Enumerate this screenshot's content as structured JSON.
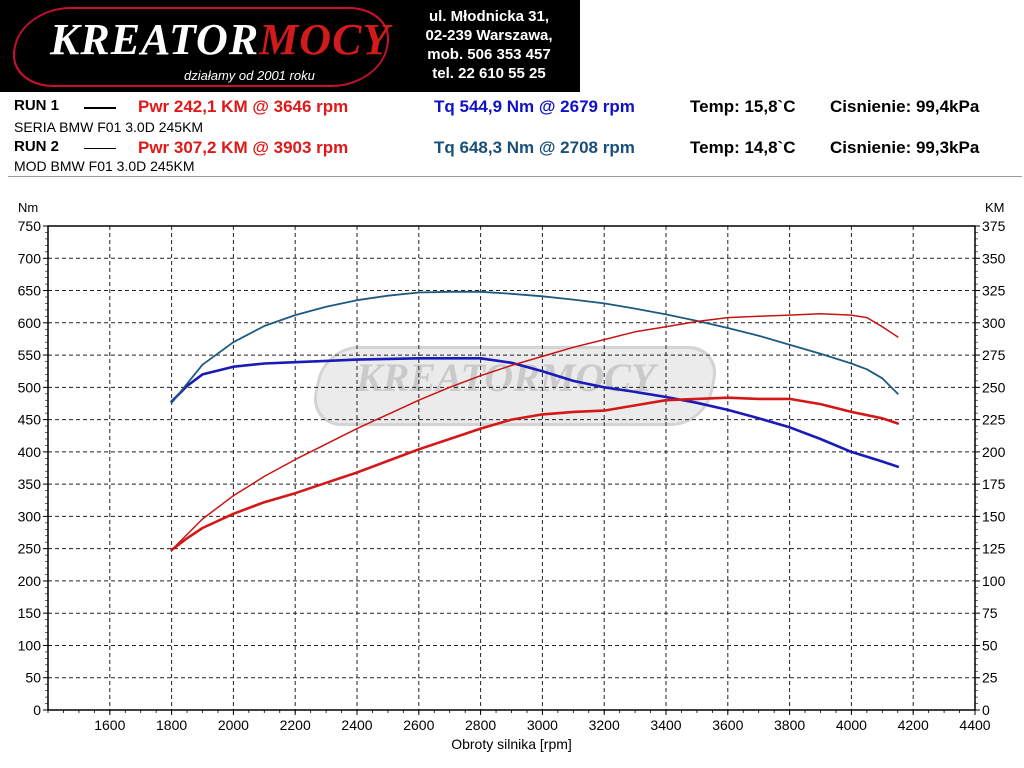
{
  "logo": {
    "text_main": "KREATOR",
    "text_accent": "MOCY",
    "tagline": "działamy od 2001 roku"
  },
  "address": {
    "lines": [
      "ul. Młodnicka 31,",
      "02-239  Warszawa,",
      "mob.  506 353 457",
      "tel.  22 610 55 25"
    ]
  },
  "runs": [
    {
      "label": "RUN 1",
      "power": "Pwr  242,1 KM @ 3646 rpm",
      "torque": "Tq 544,9 Nm @ 2679 rpm",
      "temp": "Temp: 15,8`C",
      "pressure": "Cisnienie: 99,4kPa",
      "description": "SERIA BMW F01 3.0D 245KM",
      "line_color": "#000000",
      "torque_color": "#1010c8"
    },
    {
      "label": "RUN 2",
      "power": "Pwr  307,2 KM @ 3903 rpm",
      "torque": "Tq 648,3 Nm @ 2708 rpm",
      "temp": "Temp: 14,8`C",
      "pressure": "Cisnienie: 99,3kPa",
      "description": "MOD BMW F01 3.0D 245KM",
      "line_color": "#000000",
      "torque_color": "#1a4f7a"
    }
  ],
  "chart_data": {
    "type": "line",
    "xlabel": "Obroty silnika [rpm]",
    "ylabel_left": "Nm",
    "ylabel_right": "KM",
    "xlim": [
      1400,
      4400
    ],
    "ylim_left": [
      0,
      750
    ],
    "ylim_right": [
      0,
      375
    ],
    "x_ticks": [
      1600,
      1800,
      2000,
      2200,
      2400,
      2600,
      2800,
      3000,
      3200,
      3400,
      3600,
      3800,
      4000,
      4200,
      4400
    ],
    "y_ticks_left": [
      0,
      50,
      100,
      150,
      200,
      250,
      300,
      350,
      400,
      450,
      500,
      550,
      600,
      650,
      700,
      750
    ],
    "y_ticks_right": [
      0,
      25,
      50,
      75,
      100,
      125,
      150,
      175,
      200,
      225,
      250,
      275,
      300,
      325,
      350,
      375
    ],
    "grid": true,
    "series": [
      {
        "axis": "left",
        "color": "#1a1ab8",
        "width": 2.6,
        "points": [
          [
            1800,
            478
          ],
          [
            1850,
            502
          ],
          [
            1900,
            520
          ],
          [
            2000,
            532
          ],
          [
            2100,
            537
          ],
          [
            2200,
            539
          ],
          [
            2300,
            541
          ],
          [
            2400,
            543
          ],
          [
            2500,
            544
          ],
          [
            2600,
            545
          ],
          [
            2700,
            545
          ],
          [
            2800,
            545
          ],
          [
            2900,
            538
          ],
          [
            3000,
            525
          ],
          [
            3100,
            510
          ],
          [
            3200,
            500
          ],
          [
            3300,
            493
          ],
          [
            3400,
            485
          ],
          [
            3500,
            476
          ],
          [
            3600,
            465
          ],
          [
            3700,
            452
          ],
          [
            3800,
            438
          ],
          [
            3900,
            420
          ],
          [
            4000,
            400
          ],
          [
            4100,
            385
          ],
          [
            4150,
            377
          ]
        ]
      },
      {
        "axis": "left",
        "color": "#1d5a80",
        "width": 1.8,
        "points": [
          [
            1800,
            476
          ],
          [
            1900,
            535
          ],
          [
            2000,
            570
          ],
          [
            2100,
            595
          ],
          [
            2200,
            612
          ],
          [
            2300,
            625
          ],
          [
            2400,
            635
          ],
          [
            2500,
            642
          ],
          [
            2600,
            647
          ],
          [
            2700,
            648
          ],
          [
            2800,
            648
          ],
          [
            2900,
            645
          ],
          [
            3000,
            641
          ],
          [
            3100,
            636
          ],
          [
            3200,
            630
          ],
          [
            3300,
            622
          ],
          [
            3400,
            613
          ],
          [
            3500,
            603
          ],
          [
            3600,
            592
          ],
          [
            3700,
            580
          ],
          [
            3800,
            566
          ],
          [
            3900,
            552
          ],
          [
            4000,
            537
          ],
          [
            4050,
            528
          ],
          [
            4100,
            514
          ],
          [
            4150,
            490
          ]
        ]
      },
      {
        "axis": "right",
        "color": "#d41818",
        "width": 2.6,
        "points": [
          [
            1800,
            124
          ],
          [
            1850,
            133
          ],
          [
            1900,
            141
          ],
          [
            2000,
            152
          ],
          [
            2100,
            161
          ],
          [
            2200,
            168
          ],
          [
            2300,
            176
          ],
          [
            2400,
            184
          ],
          [
            2500,
            193
          ],
          [
            2600,
            202
          ],
          [
            2700,
            210
          ],
          [
            2800,
            218
          ],
          [
            2900,
            225
          ],
          [
            3000,
            229
          ],
          [
            3100,
            231
          ],
          [
            3200,
            232
          ],
          [
            3300,
            236
          ],
          [
            3400,
            240
          ],
          [
            3500,
            241
          ],
          [
            3600,
            242
          ],
          [
            3700,
            241
          ],
          [
            3800,
            241
          ],
          [
            3900,
            237
          ],
          [
            4000,
            231
          ],
          [
            4100,
            226
          ],
          [
            4150,
            222
          ]
        ]
      },
      {
        "axis": "right",
        "color": "#c81414",
        "width": 1.5,
        "points": [
          [
            1800,
            124
          ],
          [
            1900,
            148
          ],
          [
            2000,
            166
          ],
          [
            2100,
            181
          ],
          [
            2200,
            194
          ],
          [
            2300,
            206
          ],
          [
            2400,
            218
          ],
          [
            2500,
            229
          ],
          [
            2600,
            240
          ],
          [
            2700,
            250
          ],
          [
            2800,
            259
          ],
          [
            2900,
            267
          ],
          [
            3000,
            274
          ],
          [
            3100,
            281
          ],
          [
            3200,
            287
          ],
          [
            3300,
            293
          ],
          [
            3400,
            297
          ],
          [
            3500,
            301
          ],
          [
            3600,
            304
          ],
          [
            3700,
            305
          ],
          [
            3800,
            306
          ],
          [
            3900,
            307
          ],
          [
            4000,
            306
          ],
          [
            4050,
            304
          ],
          [
            4100,
            297
          ],
          [
            4150,
            289
          ]
        ]
      }
    ]
  }
}
